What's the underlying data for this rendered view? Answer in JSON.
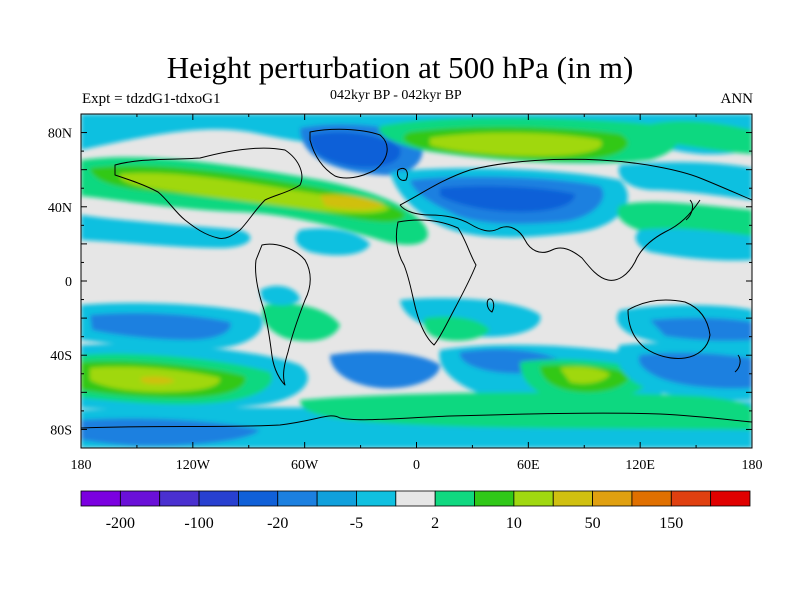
{
  "title": "Height perturbation at 500 hPa (in m)",
  "subtitle": "042kyr BP - 042kyr BP",
  "expt_label": "Expt = tdzdG1-tdxoG1",
  "season": "ANN",
  "map": {
    "lon_ticks": [
      "180",
      "120W",
      "60W",
      "0",
      "60E",
      "120E",
      "180"
    ],
    "lat_ticks": [
      "80N",
      "40N",
      "0",
      "40S",
      "80S"
    ],
    "background_color": "#e6e6e6"
  },
  "colorbar": {
    "colors": [
      "#7b00e0",
      "#6a10d8",
      "#4a30d0",
      "#2840d0",
      "#1060d8",
      "#1c80e0",
      "#10a0dc",
      "#10c0e0",
      "#e6e6e6",
      "#10d880",
      "#30c818",
      "#a0d810",
      "#d0c010",
      "#e0a010",
      "#e07000",
      "#e04010",
      "#e00000"
    ],
    "labels": [
      "-200",
      "-100",
      "-20",
      "-5",
      "2",
      "10",
      "50",
      "150"
    ]
  }
}
